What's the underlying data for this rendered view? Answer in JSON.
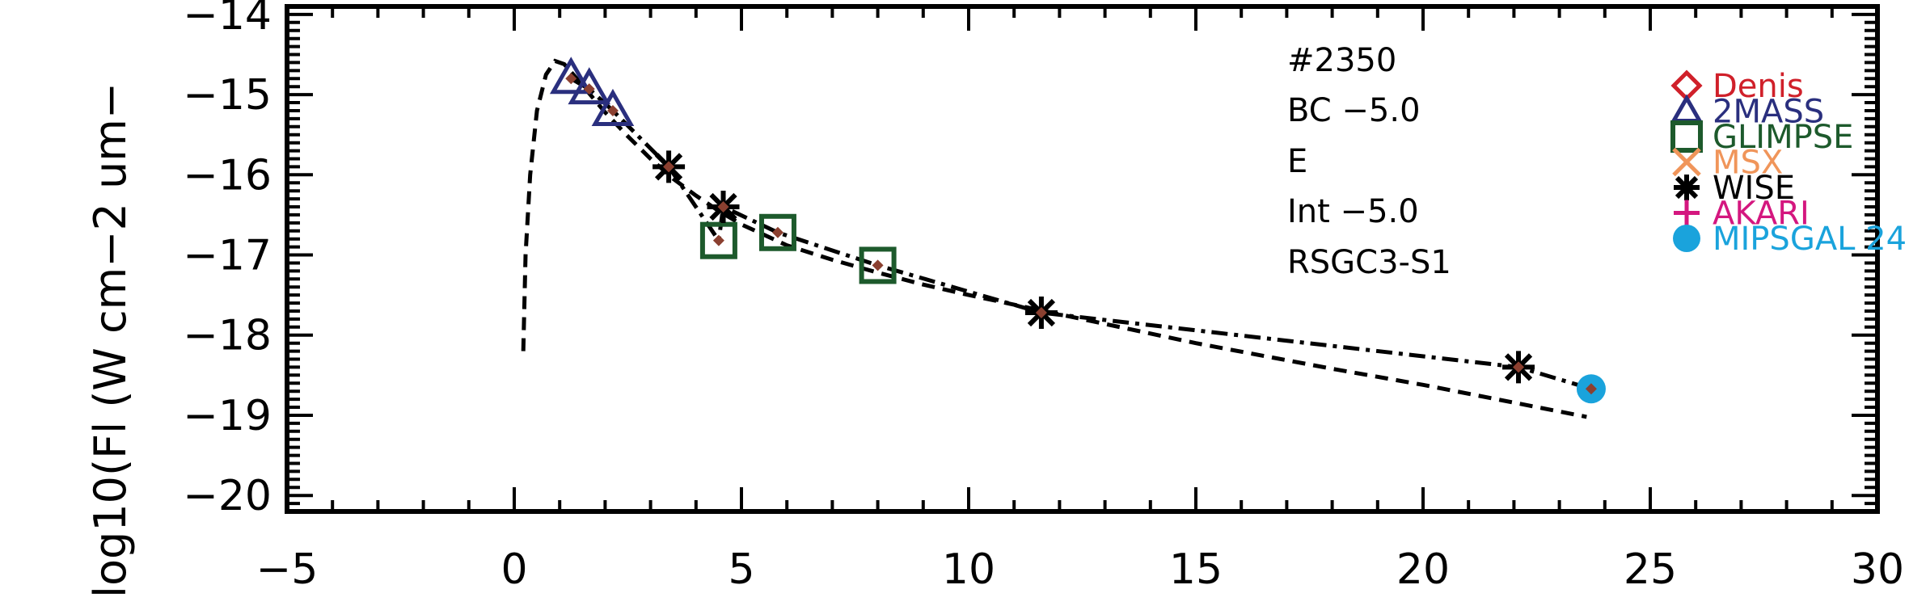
{
  "chart_data": {
    "type": "scatter",
    "title": "",
    "xlabel": "",
    "ylabel": "log10(Fl (W cm−2 um−",
    "xlim": [
      -5,
      30
    ],
    "ylim": [
      -20.2,
      -13.9
    ],
    "x_ticks": [
      -5,
      0,
      5,
      10,
      15,
      20,
      25,
      30
    ],
    "x_tick_labels": [
      "−5",
      "0",
      "5",
      "10",
      "15",
      "20",
      "25",
      "30"
    ],
    "y_ticks": [
      -20,
      -19,
      -18,
      -17,
      -16,
      -15,
      -14
    ],
    "y_tick_labels": [
      "−20",
      "−19",
      "−18",
      "−17",
      "−16",
      "−15",
      "−14"
    ],
    "annotations": [
      "#2350",
      "BC −5.0",
      "E",
      "Int −5.0",
      "RSGC3-S1"
    ],
    "legend": {
      "placement": "top-right",
      "entries": [
        {
          "label": "Denis",
          "marker": "diamond",
          "color": "#d0202a"
        },
        {
          "label": "2MASS",
          "marker": "triangle",
          "color": "#2a2f7e"
        },
        {
          "label": "GLIMPSE",
          "marker": "square",
          "color": "#1d5a2c"
        },
        {
          "label": "MSX",
          "marker": "x",
          "color": "#f0955a"
        },
        {
          "label": "WISE",
          "marker": "asterisk",
          "color": "#000000"
        },
        {
          "label": "AKARI",
          "marker": "plus",
          "color": "#d4177f"
        },
        {
          "label": "MIPSGAL 24",
          "marker": "circle",
          "color": "#1aa3dc"
        }
      ]
    },
    "series": [
      {
        "marker": "triangle",
        "color": "#2a2f7e",
        "x": [
          1.25,
          1.65,
          2.17
        ],
        "y": [
          -14.8,
          -14.93,
          -15.2
        ]
      },
      {
        "marker": "square",
        "color": "#1d5a2c",
        "x": [
          4.5,
          5.8,
          8.0
        ],
        "y": [
          -16.82,
          -16.72,
          -17.13
        ]
      },
      {
        "marker": "asterisk",
        "color": "#000000",
        "x": [
          3.4,
          4.6,
          11.6,
          22.1
        ],
        "y": [
          -15.9,
          -16.4,
          -17.72,
          -18.4
        ]
      },
      {
        "marker": "circle",
        "color": "#1aa3dc",
        "x": [
          23.7
        ],
        "y": [
          -18.67
        ]
      },
      {
        "marker": "small-diamond",
        "color": "#8b4030",
        "x": [
          1.25,
          1.65,
          2.17,
          3.4,
          4.5,
          4.6,
          5.8,
          8.0,
          11.6,
          22.1,
          23.7
        ],
        "y": [
          -14.8,
          -14.93,
          -15.2,
          -15.9,
          -16.82,
          -16.4,
          -16.72,
          -17.13,
          -17.72,
          -18.4,
          -18.67
        ]
      }
    ],
    "lines": [
      {
        "style": "dash-dot",
        "x": [
          1.25,
          1.65,
          2.17,
          3.4,
          4.5,
          4.6,
          5.8,
          8.0,
          11.6,
          22.1,
          23.7
        ],
        "y": [
          -14.8,
          -14.93,
          -15.2,
          -15.9,
          -16.82,
          -16.4,
          -16.72,
          -17.13,
          -17.72,
          -18.4,
          -18.67
        ]
      },
      {
        "style": "dashed",
        "x": [
          0.2,
          0.25,
          0.35,
          0.5,
          0.7,
          0.9,
          1.1,
          1.3,
          1.6,
          2.0,
          2.5,
          3.0,
          3.5,
          4.0,
          4.5,
          5.0,
          6.0,
          7.0,
          8.0,
          9.0,
          10.0,
          12.0,
          15.0,
          18.0,
          20.0,
          23.6
        ],
        "y": [
          -18.2,
          -17.0,
          -16.0,
          -15.2,
          -14.75,
          -14.58,
          -14.62,
          -14.75,
          -14.95,
          -15.22,
          -15.52,
          -15.8,
          -16.05,
          -16.26,
          -16.45,
          -16.62,
          -16.88,
          -17.06,
          -17.22,
          -17.37,
          -17.5,
          -17.74,
          -18.1,
          -18.42,
          -18.62,
          -19.02
        ]
      }
    ]
  }
}
